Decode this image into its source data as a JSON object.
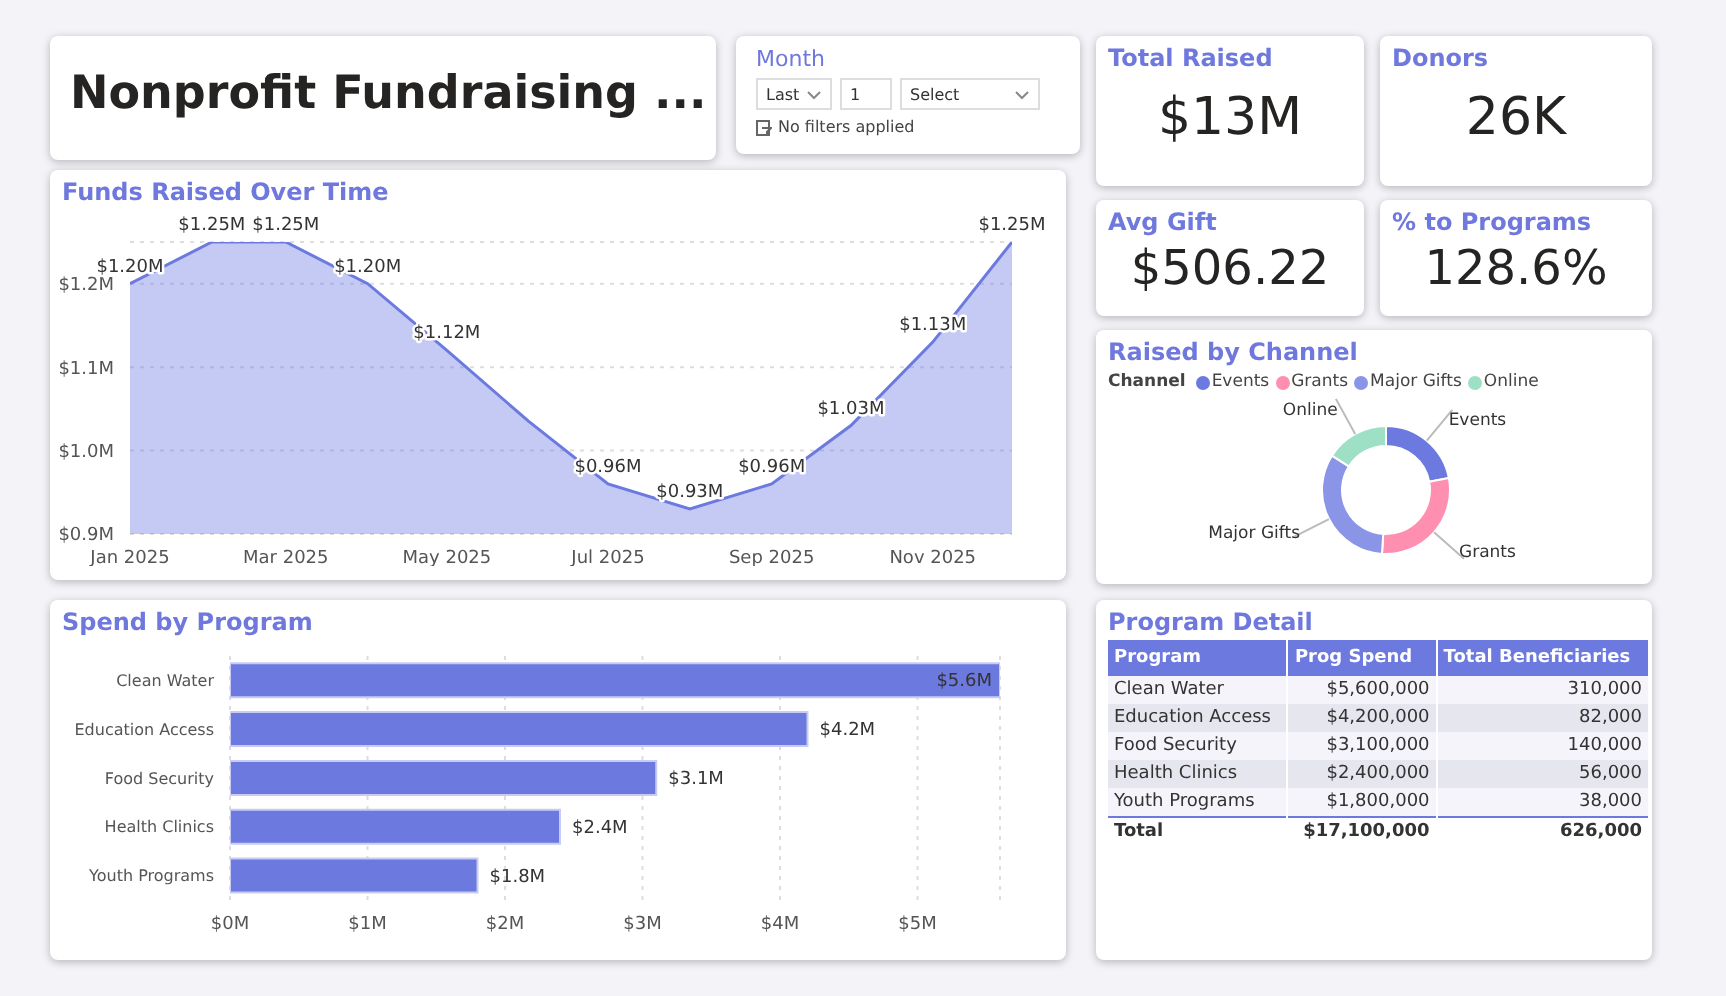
{
  "chart_data": [
    {
      "type": "other",
      "title": "Nonprofit Fundraising ..."
    },
    {
      "type": "other",
      "title": "Month",
      "annotations": [
        "Last",
        "1",
        "Select",
        "No filters applied"
      ]
    },
    {
      "type": "other",
      "title": "Total Raised",
      "annotations": [
        "$13M"
      ]
    },
    {
      "type": "other",
      "title": "Donors",
      "annotations": [
        "26K"
      ]
    },
    {
      "type": "area",
      "title": "Funds Raised Over Time",
      "x": [
        "2025-01",
        "2025-02",
        "2025-03",
        "2025-04",
        "2025-05",
        "2025-06",
        "2025-07",
        "2025-08",
        "2025-09",
        "2025-10",
        "2025-11",
        "2025-12"
      ],
      "values": [
        1.2,
        1.25,
        1.25,
        1.2,
        1.12,
        1.035,
        0.96,
        0.93,
        0.96,
        1.03,
        1.13,
        1.25
      ],
      "value_labels": [
        "$1.20M",
        "$1.25M",
        "$1.25M",
        "$1.20M",
        "$1.12M",
        null,
        "$0.96M",
        "$0.93M",
        "$0.96M",
        "$1.03M",
        "$1.13M",
        "$1.25M"
      ],
      "color": "#6c7ae0",
      "xlim": [
        "2025-01",
        "2025-12"
      ],
      "xticks": [
        {
          "value": "2025-01",
          "label": "Jan 2025"
        },
        {
          "value": "2025-03",
          "label": "Mar 2025"
        },
        {
          "value": "2025-05",
          "label": "May 2025"
        },
        {
          "value": "2025-07",
          "label": "Jul 2025"
        },
        {
          "value": "2025-09",
          "label": "Sep 2025"
        },
        {
          "value": "2025-11",
          "label": "Nov 2025"
        }
      ],
      "ylim": [
        0.9,
        1.25
      ],
      "yticks": [
        {
          "value": 0.9,
          "label": "$0.9M"
        },
        {
          "value": 1.0,
          "label": "$1.0M"
        },
        {
          "value": 1.1,
          "label": "$1.1M"
        },
        {
          "value": 1.2,
          "label": "$1.2M"
        }
      ],
      "grid": "y"
    },
    {
      "type": "other",
      "title": "Avg Gift",
      "annotations": [
        "$506.22"
      ]
    },
    {
      "type": "other",
      "title": "% to Programs",
      "annotations": [
        "128.6%"
      ]
    },
    {
      "type": "donut",
      "title": "Raised by Channel",
      "legend_title": "Channel",
      "legend": "top left",
      "categories": [
        "Events",
        "Grants",
        "Major Gifts",
        "Online"
      ],
      "values": [
        22,
        29,
        33,
        16
      ],
      "colors": [
        "#6c7ae0",
        "#ff8fb1",
        "#8a95e8",
        "#9ee0c6"
      ]
    },
    {
      "type": "bar",
      "orientation": "horizontal",
      "title": "Spend by Program",
      "categories": [
        "Clean Water",
        "Education Access",
        "Food Security",
        "Health Clinics",
        "Youth Programs"
      ],
      "values": [
        5.6,
        4.2,
        3.1,
        2.4,
        1.8
      ],
      "value_labels": [
        "$5.6M",
        "$4.2M",
        "$3.1M",
        "$2.4M",
        "$1.8M"
      ],
      "color": "#6c7ae0",
      "xlim": [
        0,
        5.6
      ],
      "xticks": [
        {
          "value": 0,
          "label": "$0M"
        },
        {
          "value": 1,
          "label": "$1M"
        },
        {
          "value": 2,
          "label": "$2M"
        },
        {
          "value": 3,
          "label": "$3M"
        },
        {
          "value": 4,
          "label": "$4M"
        },
        {
          "value": 5,
          "label": "$5M"
        }
      ],
      "grid": "x"
    },
    {
      "type": "other",
      "title": "Program Detail",
      "annotations": [
        "Program",
        "Prog Spend",
        "Total Beneficiaries",
        "Clean Water",
        "$5,600,000",
        "310,000",
        "Education Access",
        "$4,200,000",
        "82,000",
        "Food Security",
        "$3,100,000",
        "140,000",
        "Health Clinics",
        "$2,400,000",
        "56,000",
        "Youth Programs",
        "$1,800,000",
        "38,000",
        "Total",
        "$17,100,000",
        "626,000"
      ]
    }
  ]
}
